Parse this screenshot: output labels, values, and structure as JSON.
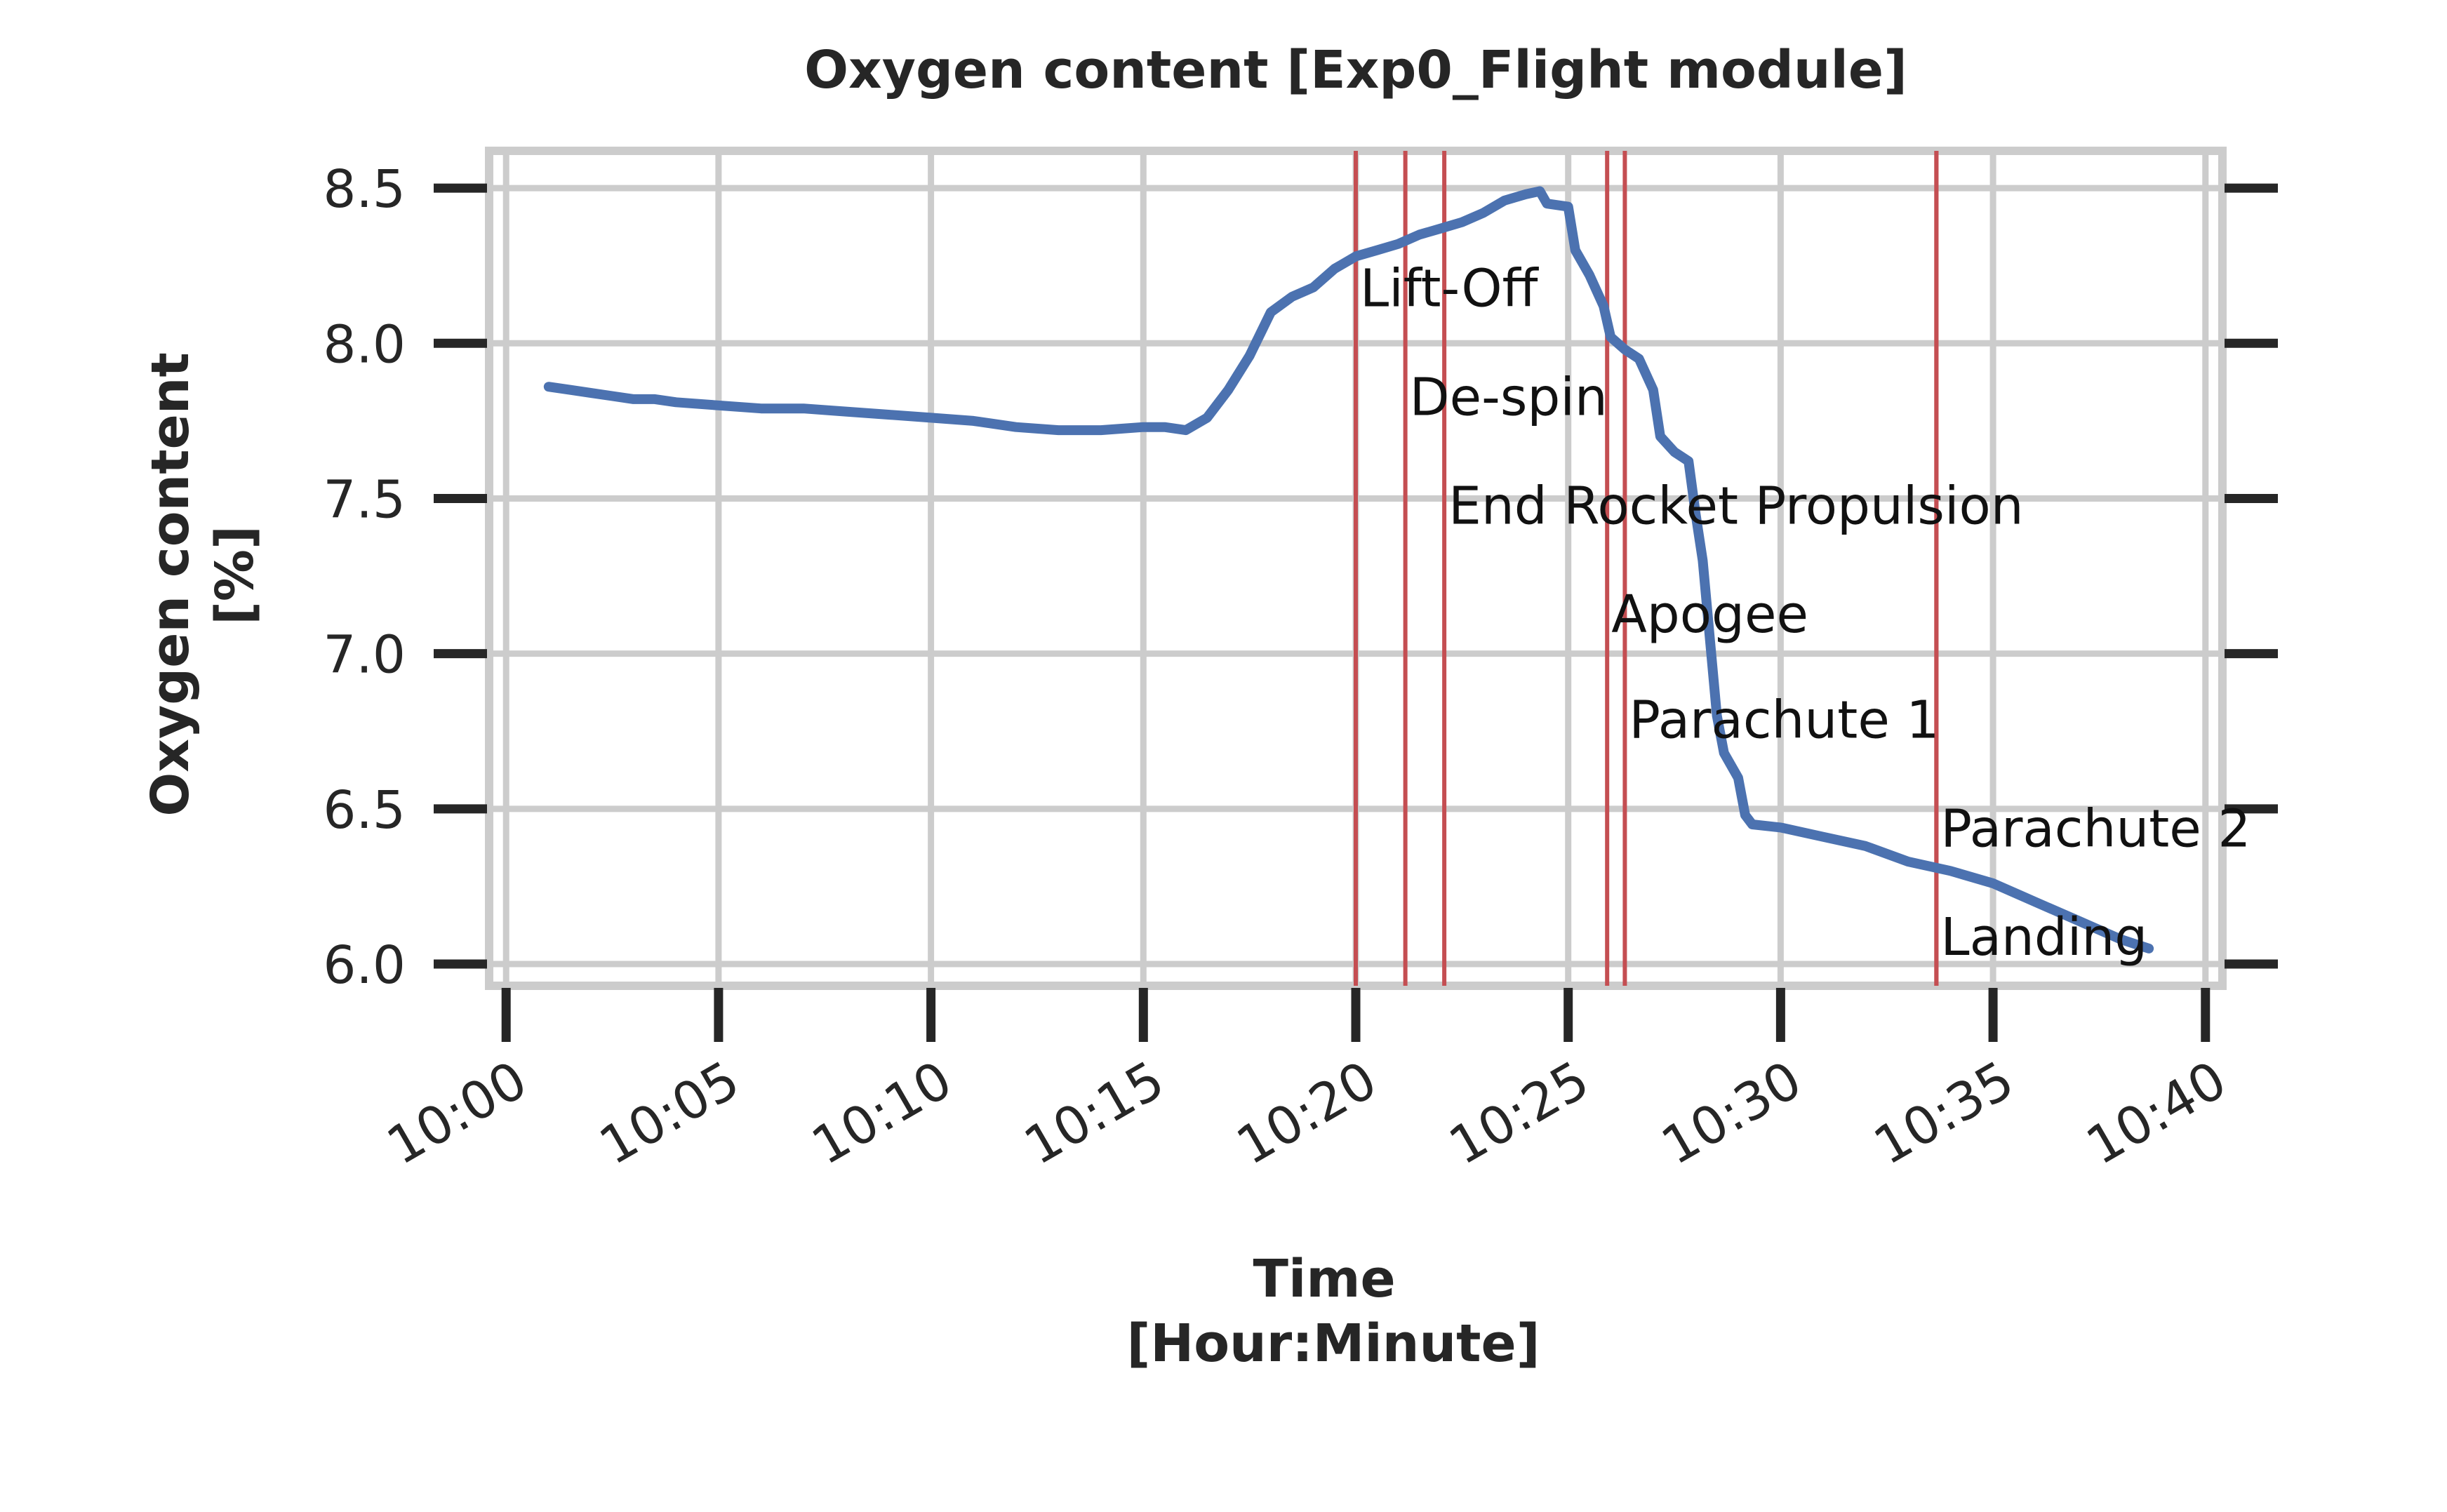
{
  "chart_data": {
    "type": "line",
    "title": "Oxygen content [Exp0_Flight module]",
    "xlabel": [
      "Time",
      "[Hour:Minute]"
    ],
    "ylabel": [
      "Oxygen content",
      "[%]"
    ],
    "xlim": [
      "09:59:36",
      "10:40:24"
    ],
    "ylim": [
      5.93,
      8.62
    ],
    "xticks": [
      "10:00",
      "10:05",
      "10:10",
      "10:15",
      "10:20",
      "10:25",
      "10:30",
      "10:35",
      "10:40"
    ],
    "yticks": [
      6.0,
      6.5,
      7.0,
      7.5,
      8.0,
      8.5
    ],
    "ytick_labels": [
      "6.0",
      "6.5",
      "7.0",
      "7.5",
      "8.0",
      "8.5"
    ],
    "grid": true,
    "line_color": "#4c72b0",
    "event_color": "#c44e52",
    "series": [
      {
        "points": [
          [
            "10:01:00",
            7.86
          ],
          [
            "10:01:30",
            7.85
          ],
          [
            "10:02:00",
            7.84
          ],
          [
            "10:02:30",
            7.83
          ],
          [
            "10:03:00",
            7.82
          ],
          [
            "10:03:30",
            7.82
          ],
          [
            "10:04:00",
            7.81
          ],
          [
            "10:05:00",
            7.8
          ],
          [
            "10:06:00",
            7.79
          ],
          [
            "10:07:00",
            7.79
          ],
          [
            "10:08:00",
            7.78
          ],
          [
            "10:09:00",
            7.77
          ],
          [
            "10:10:00",
            7.76
          ],
          [
            "10:11:00",
            7.75
          ],
          [
            "10:12:00",
            7.73
          ],
          [
            "10:13:00",
            7.72
          ],
          [
            "10:14:00",
            7.72
          ],
          [
            "10:15:00",
            7.73
          ],
          [
            "10:15:30",
            7.73
          ],
          [
            "10:16:00",
            7.72
          ],
          [
            "10:16:30",
            7.76
          ],
          [
            "10:17:00",
            7.85
          ],
          [
            "10:17:30",
            7.96
          ],
          [
            "10:18:00",
            8.1
          ],
          [
            "10:18:30",
            8.15
          ],
          [
            "10:19:00",
            8.18
          ],
          [
            "10:19:30",
            8.24
          ],
          [
            "10:20:00",
            8.28
          ],
          [
            "10:20:30",
            8.3
          ],
          [
            "10:21:00",
            8.32
          ],
          [
            "10:21:30",
            8.35
          ],
          [
            "10:22:00",
            8.37
          ],
          [
            "10:22:30",
            8.39
          ],
          [
            "10:23:00",
            8.42
          ],
          [
            "10:23:30",
            8.46
          ],
          [
            "10:24:00",
            8.48
          ],
          [
            "10:24:20",
            8.49
          ],
          [
            "10:24:30",
            8.45
          ],
          [
            "10:25:00",
            8.44
          ],
          [
            "10:25:10",
            8.3
          ],
          [
            "10:25:30",
            8.22
          ],
          [
            "10:25:50",
            8.12
          ],
          [
            "10:26:00",
            8.02
          ],
          [
            "10:26:20",
            7.98
          ],
          [
            "10:26:40",
            7.95
          ],
          [
            "10:27:00",
            7.85
          ],
          [
            "10:27:10",
            7.7
          ],
          [
            "10:27:30",
            7.65
          ],
          [
            "10:27:50",
            7.62
          ],
          [
            "10:28:00",
            7.45
          ],
          [
            "10:28:10",
            7.3
          ],
          [
            "10:28:20",
            7.05
          ],
          [
            "10:28:30",
            6.8
          ],
          [
            "10:28:40",
            6.68
          ],
          [
            "10:29:00",
            6.6
          ],
          [
            "10:29:10",
            6.48
          ],
          [
            "10:29:20",
            6.45
          ],
          [
            "10:30:00",
            6.44
          ],
          [
            "10:31:00",
            6.41
          ],
          [
            "10:32:00",
            6.38
          ],
          [
            "10:33:00",
            6.33
          ],
          [
            "10:34:00",
            6.3
          ],
          [
            "10:35:00",
            6.26
          ],
          [
            "10:36:00",
            6.2
          ],
          [
            "10:37:00",
            6.14
          ],
          [
            "10:38:00",
            6.08
          ],
          [
            "10:38:40",
            6.05
          ]
        ]
      }
    ],
    "events": [
      {
        "label": "Lift-Off",
        "time": "10:20:00",
        "label_y": 8.18
      },
      {
        "label": "De-spin",
        "time": "10:21:10",
        "label_y": 7.83
      },
      {
        "label": "End Rocket Propulsion",
        "time": "10:22:05",
        "label_y": 7.48
      },
      {
        "label": "Apogee",
        "time": "10:25:55",
        "label_y": 7.13
      },
      {
        "label": "Parachute 1",
        "time": "10:26:20",
        "label_y": 6.79
      },
      {
        "label": "Parachute 2",
        "time": "10:33:40",
        "label_y": 6.44
      },
      {
        "label": "Landing",
        "time": "10:33:40",
        "label_y": 6.09
      }
    ]
  }
}
